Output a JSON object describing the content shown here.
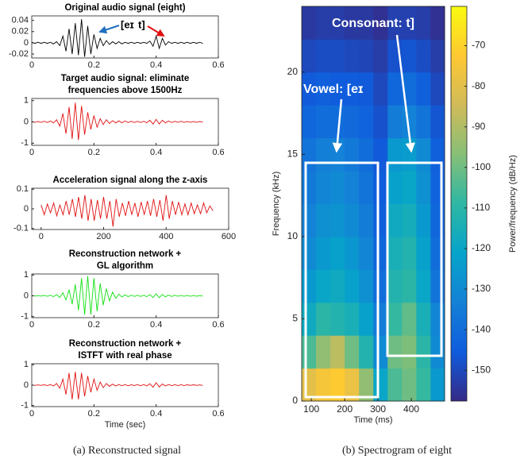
{
  "chart_data": [
    {
      "type": "line",
      "title": [
        "Original audio signal (eight)"
      ],
      "color": "#000000",
      "annotations": [
        {
          "text": "[eɪ",
          "color": "#1f6fc0"
        },
        {
          "text": "t]",
          "color": "#e01010"
        }
      ],
      "xlim": [
        0,
        0.6
      ],
      "xticks": [
        0,
        0.2,
        0.4,
        0.6
      ],
      "ylim": [
        -0.027,
        0.048
      ],
      "yticks": [
        -0.02,
        0,
        0.02,
        0.04
      ],
      "x": [
        0,
        0.01,
        0.02,
        0.03,
        0.04,
        0.05,
        0.06,
        0.07,
        0.08,
        0.09,
        0.1,
        0.11,
        0.12,
        0.13,
        0.14,
        0.15,
        0.16,
        0.17,
        0.18,
        0.19,
        0.2,
        0.21,
        0.22,
        0.23,
        0.24,
        0.25,
        0.26,
        0.27,
        0.28,
        0.29,
        0.3,
        0.31,
        0.32,
        0.33,
        0.34,
        0.35,
        0.36,
        0.37,
        0.38,
        0.39,
        0.4,
        0.41,
        0.42,
        0.43,
        0.44,
        0.45,
        0.46,
        0.47,
        0.48,
        0.49,
        0.5,
        0.51,
        0.52,
        0.53,
        0.54,
        0.55
      ],
      "values": [
        0.001,
        -0.001,
        0.001,
        -0.001,
        0.001,
        -0.001,
        0.001,
        -0.002,
        0.002,
        -0.005,
        0.012,
        -0.015,
        0.025,
        -0.02,
        0.035,
        -0.022,
        0.042,
        -0.025,
        0.03,
        -0.02,
        0.015,
        -0.01,
        0.008,
        -0.005,
        0.004,
        -0.003,
        0.002,
        -0.002,
        0.002,
        -0.002,
        0.001,
        -0.001,
        0.001,
        -0.001,
        0.001,
        -0.001,
        0.001,
        -0.001,
        0.003,
        -0.006,
        0.012,
        -0.01,
        0.008,
        -0.004,
        0.002,
        -0.001,
        0.001,
        -0.001,
        0.001,
        -0.001,
        0.001,
        -0.001,
        0.001,
        -0.001,
        0.001,
        -0.001
      ]
    },
    {
      "type": "line",
      "title": [
        "Target audio signal: eliminate",
        "frequencies above 1500Hz"
      ],
      "color": "#e01010",
      "xlim": [
        0,
        0.6
      ],
      "xticks": [
        0,
        0.2,
        0.4,
        0.6
      ],
      "ylim": [
        -1.1,
        1.1
      ],
      "yticks": [
        -1,
        0,
        1
      ],
      "x": [
        0,
        0.01,
        0.02,
        0.03,
        0.04,
        0.05,
        0.06,
        0.07,
        0.08,
        0.09,
        0.1,
        0.11,
        0.12,
        0.13,
        0.14,
        0.15,
        0.16,
        0.17,
        0.18,
        0.19,
        0.2,
        0.21,
        0.22,
        0.23,
        0.24,
        0.25,
        0.26,
        0.27,
        0.28,
        0.29,
        0.3,
        0.31,
        0.32,
        0.33,
        0.34,
        0.35,
        0.36,
        0.37,
        0.38,
        0.39,
        0.4,
        0.41,
        0.42,
        0.43,
        0.44,
        0.45,
        0.46,
        0.47,
        0.48,
        0.49,
        0.5,
        0.51,
        0.52,
        0.53,
        0.54,
        0.55
      ],
      "values": [
        0.02,
        -0.02,
        0.02,
        -0.02,
        0.03,
        -0.03,
        0.04,
        -0.05,
        0.1,
        -0.2,
        0.4,
        -0.55,
        0.7,
        -0.8,
        0.9,
        -0.85,
        0.75,
        -0.6,
        0.45,
        -0.35,
        0.3,
        -0.25,
        0.15,
        -0.12,
        0.1,
        -0.08,
        0.06,
        -0.05,
        0.05,
        -0.04,
        0.04,
        -0.03,
        0.03,
        -0.03,
        0.03,
        -0.03,
        0.03,
        -0.04,
        0.08,
        -0.1,
        0.12,
        -0.1,
        0.08,
        -0.05,
        0.04,
        -0.03,
        0.03,
        -0.02,
        0.03,
        -0.02,
        0.02,
        -0.02,
        0.02,
        -0.02,
        0.02,
        -0.01
      ]
    },
    {
      "type": "line",
      "title": [
        "Acceleration signal along the z-axis"
      ],
      "color": "#e01010",
      "xlim": [
        -30,
        600
      ],
      "xticks": [
        0,
        200,
        400,
        600
      ],
      "ylim": [
        -0.105,
        0.105
      ],
      "yticks": [
        -0.1,
        0,
        0.1
      ],
      "x": [
        0,
        10,
        20,
        30,
        40,
        50,
        60,
        70,
        80,
        90,
        100,
        110,
        120,
        130,
        140,
        150,
        160,
        170,
        180,
        190,
        200,
        210,
        220,
        230,
        240,
        250,
        260,
        270,
        280,
        290,
        300,
        310,
        320,
        330,
        340,
        350,
        360,
        370,
        380,
        390,
        400,
        410,
        420,
        430,
        440,
        450,
        460,
        470,
        480,
        490,
        500,
        510,
        520,
        530,
        540,
        550
      ],
      "values": [
        0.02,
        -0.03,
        0.025,
        -0.02,
        0.03,
        -0.035,
        0.02,
        -0.03,
        0.04,
        -0.03,
        0.05,
        -0.04,
        0.06,
        -0.05,
        0.07,
        -0.06,
        0.05,
        -0.06,
        0.045,
        -0.05,
        0.06,
        -0.05,
        0.04,
        -0.09,
        0.05,
        -0.04,
        0.03,
        -0.035,
        0.04,
        -0.03,
        0.03,
        -0.04,
        0.035,
        -0.03,
        0.04,
        -0.035,
        0.05,
        -0.04,
        0.045,
        -0.06,
        0.07,
        -0.05,
        0.04,
        -0.03,
        0.035,
        -0.03,
        0.025,
        -0.03,
        0.03,
        -0.025,
        0.02,
        -0.025,
        0.03,
        -0.02,
        0.015,
        -0.01
      ]
    },
    {
      "type": "line",
      "title": [
        "Reconstruction network +",
        "GL algorithm"
      ],
      "color": "#10e010",
      "xlim": [
        0,
        0.6
      ],
      "xticks": [
        0,
        0.2,
        0.4,
        0.6
      ],
      "ylim": [
        -1.05,
        1.05
      ],
      "yticks": [
        -1,
        0,
        1
      ],
      "x": [
        0,
        0.01,
        0.02,
        0.03,
        0.04,
        0.05,
        0.06,
        0.07,
        0.08,
        0.09,
        0.1,
        0.11,
        0.12,
        0.13,
        0.14,
        0.15,
        0.16,
        0.17,
        0.18,
        0.19,
        0.2,
        0.21,
        0.22,
        0.23,
        0.24,
        0.25,
        0.26,
        0.27,
        0.28,
        0.29,
        0.3,
        0.31,
        0.32,
        0.33,
        0.34,
        0.35,
        0.36,
        0.37,
        0.38,
        0.39,
        0.4,
        0.41,
        0.42,
        0.43,
        0.44,
        0.45,
        0.46,
        0.47,
        0.48,
        0.49,
        0.5,
        0.51,
        0.52,
        0.53,
        0.54,
        0.55
      ],
      "values": [
        0.01,
        -0.01,
        0.01,
        -0.01,
        0.02,
        -0.02,
        0.03,
        -0.04,
        0.06,
        -0.08,
        0.15,
        -0.2,
        0.3,
        -0.4,
        0.55,
        -0.7,
        0.85,
        -0.9,
        0.95,
        -0.9,
        0.85,
        -0.75,
        0.6,
        -0.45,
        0.35,
        -0.25,
        0.18,
        -0.12,
        0.08,
        -0.06,
        0.05,
        -0.04,
        0.03,
        -0.03,
        0.03,
        -0.03,
        0.03,
        -0.04,
        0.06,
        -0.08,
        0.1,
        -0.09,
        0.07,
        -0.05,
        0.04,
        -0.03,
        0.03,
        -0.02,
        0.02,
        -0.02,
        0.02,
        -0.02,
        0.02,
        -0.02,
        0.01,
        -0.01
      ]
    },
    {
      "type": "line",
      "title": [
        "Reconstruction network +",
        "ISTFT with real phase"
      ],
      "color": "#e01010",
      "xlabel": "Time (sec)",
      "xlim": [
        0,
        0.6
      ],
      "xticks": [
        0,
        0.2,
        0.4,
        0.6
      ],
      "ylim": [
        -1.05,
        1.05
      ],
      "yticks": [
        -1,
        0,
        1
      ],
      "x": [
        0,
        0.01,
        0.02,
        0.03,
        0.04,
        0.05,
        0.06,
        0.07,
        0.08,
        0.09,
        0.1,
        0.11,
        0.12,
        0.13,
        0.14,
        0.15,
        0.16,
        0.17,
        0.18,
        0.19,
        0.2,
        0.21,
        0.22,
        0.23,
        0.24,
        0.25,
        0.26,
        0.27,
        0.28,
        0.29,
        0.3,
        0.31,
        0.32,
        0.33,
        0.34,
        0.35,
        0.36,
        0.37,
        0.38,
        0.39,
        0.4,
        0.41,
        0.42,
        0.43,
        0.44,
        0.45,
        0.46,
        0.47,
        0.48,
        0.49,
        0.5,
        0.51,
        0.52,
        0.53,
        0.54,
        0.55
      ],
      "values": [
        0.01,
        -0.01,
        0.01,
        -0.01,
        0.02,
        -0.02,
        0.03,
        -0.04,
        0.08,
        -0.15,
        0.3,
        -0.45,
        0.6,
        -0.7,
        0.65,
        -0.7,
        0.6,
        -0.55,
        0.45,
        -0.35,
        0.3,
        -0.25,
        0.15,
        -0.12,
        0.08,
        -0.06,
        0.05,
        -0.04,
        0.03,
        -0.03,
        0.03,
        -0.03,
        0.02,
        -0.02,
        0.03,
        -0.03,
        0.03,
        -0.04,
        0.07,
        -0.1,
        0.12,
        -0.09,
        0.06,
        -0.04,
        0.03,
        -0.02,
        0.02,
        -0.02,
        0.02,
        -0.02,
        0.02,
        -0.01,
        0.02,
        -0.01,
        0.01,
        -0.01
      ]
    },
    {
      "type": "heatmap",
      "xlabel": "Time (ms)",
      "ylabel": "Frequency (kHz)",
      "colorbar_label": "Power/frequency (dB/Hz)",
      "annotations": [
        "Vowel: [eɪ",
        "Consonant: t]"
      ],
      "xlim": [
        71,
        500
      ],
      "xticks": [
        100,
        200,
        300,
        400
      ],
      "ylim": [
        0,
        24
      ],
      "yticks": [
        0,
        5,
        10,
        15,
        20
      ],
      "clim": [
        -157.6,
        -60.3
      ],
      "cticks": [
        -150,
        -140,
        -130,
        -120,
        -110,
        -100,
        -90,
        -80,
        -70
      ],
      "colormap": [
        "#352a87",
        "#0f5cdd",
        "#1481d6",
        "#06a4ca",
        "#2eb7a4",
        "#87bf77",
        "#d1bb59",
        "#fec832",
        "#f9fb0e"
      ],
      "x_edges": [
        71,
        114,
        157,
        200,
        243,
        286,
        329,
        372,
        415,
        458,
        500
      ],
      "y_edges": [
        0,
        2,
        4,
        6,
        8,
        10,
        12,
        14,
        16,
        18,
        20,
        22,
        24
      ],
      "z": [
        [
          -80,
          -75,
          -72,
          -78,
          -95,
          -120,
          -105,
          -100,
          -108,
          -125
        ],
        [
          -105,
          -95,
          -88,
          -100,
          -112,
          -130,
          -100,
          -98,
          -110,
          -130
        ],
        [
          -118,
          -110,
          -112,
          -115,
          -122,
          -135,
          -108,
          -102,
          -115,
          -132
        ],
        [
          -125,
          -120,
          -118,
          -122,
          -128,
          -140,
          -112,
          -110,
          -120,
          -138
        ],
        [
          -130,
          -125,
          -122,
          -126,
          -132,
          -142,
          -115,
          -112,
          -122,
          -140
        ],
        [
          -133,
          -128,
          -127,
          -130,
          -135,
          -144,
          -118,
          -116,
          -125,
          -142
        ],
        [
          -136,
          -132,
          -130,
          -133,
          -138,
          -145,
          -122,
          -120,
          -128,
          -143
        ],
        [
          -138,
          -134,
          -133,
          -136,
          -140,
          -146,
          -125,
          -124,
          -130,
          -144
        ],
        [
          -142,
          -140,
          -140,
          -141,
          -143,
          -148,
          -135,
          -133,
          -138,
          -147
        ],
        [
          -146,
          -144,
          -145,
          -145,
          -146,
          -150,
          -142,
          -140,
          -144,
          -150
        ],
        [
          -150,
          -149,
          -149,
          -150,
          -151,
          -153,
          -148,
          -147,
          -149,
          -153
        ],
        [
          -154,
          -153,
          -153,
          -154,
          -154,
          -156,
          -152,
          -152,
          -153,
          -156
        ]
      ]
    }
  ],
  "captions": [
    "(a) Reconstructed signal",
    "(b) Spectrogram of eight"
  ]
}
